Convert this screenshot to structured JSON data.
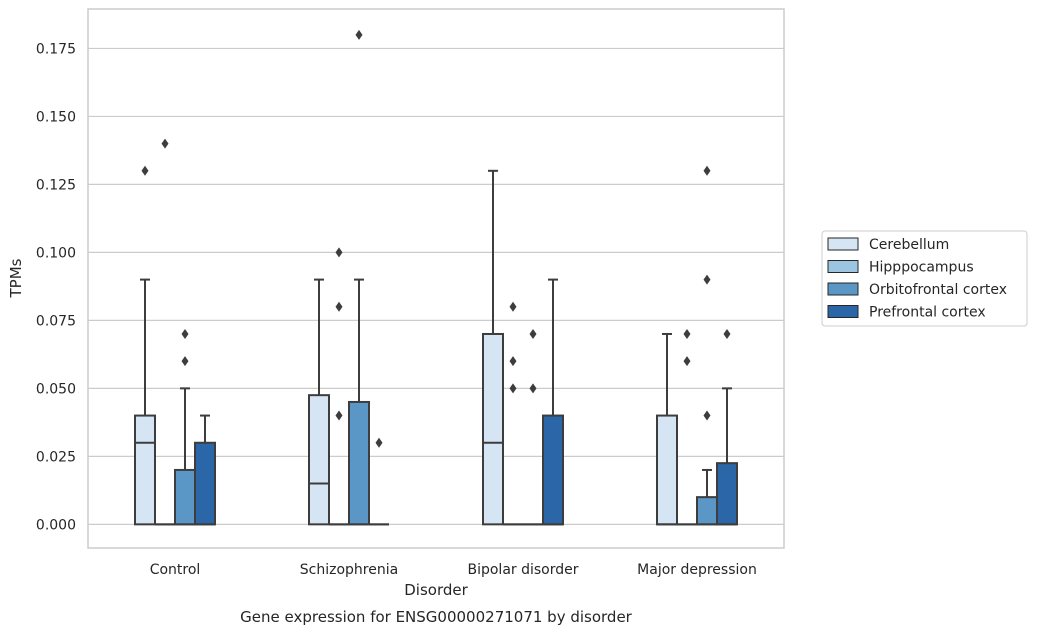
{
  "chart_data": {
    "type": "box",
    "xlabel": "Disorder",
    "ylabel": "TPMs",
    "caption": "Gene expression for ENSG00000271071 by disorder",
    "ylim": [
      -0.0087,
      0.1895
    ],
    "yticks": [
      "0.000",
      "0.025",
      "0.050",
      "0.075",
      "0.100",
      "0.125",
      "0.150",
      "0.175"
    ],
    "grid": "horizontal",
    "legend_position": "right",
    "categories": [
      "Control",
      "Schizophrenia",
      "Bipolar disorder",
      "Major depression"
    ],
    "series": [
      {
        "name": "Cerebellum",
        "color": "#d6e5f4",
        "boxes": [
          {
            "q1": 0,
            "median": 0.03,
            "q3": 0.04,
            "whisker_low": 0,
            "whisker_high": 0.09,
            "outliers": [
              0.13
            ]
          },
          {
            "q1": 0,
            "median": 0.015,
            "q3": 0.0475,
            "whisker_low": 0,
            "whisker_high": 0.09,
            "outliers": []
          },
          {
            "q1": 0,
            "median": 0.03,
            "q3": 0.07,
            "whisker_low": 0,
            "whisker_high": 0.13,
            "outliers": []
          },
          {
            "q1": 0,
            "median": 0,
            "q3": 0.04,
            "whisker_low": 0,
            "whisker_high": 0.07,
            "outliers": []
          }
        ]
      },
      {
        "name": "Hipppocampus",
        "color": "#9bc5e0",
        "boxes": [
          {
            "q1": 0,
            "median": 0,
            "q3": 0,
            "whisker_low": 0,
            "whisker_high": 0,
            "outliers": [
              0.14
            ]
          },
          {
            "q1": 0,
            "median": 0,
            "q3": 0,
            "whisker_low": 0,
            "whisker_high": 0,
            "outliers": [
              0.04,
              0.08,
              0.1
            ]
          },
          {
            "q1": 0,
            "median": 0,
            "q3": 0,
            "whisker_low": 0,
            "whisker_high": 0,
            "outliers": [
              0.05,
              0.06,
              0.08
            ]
          },
          {
            "q1": 0,
            "median": 0,
            "q3": 0,
            "whisker_low": 0,
            "whisker_high": 0,
            "outliers": [
              0.06,
              0.07
            ]
          }
        ]
      },
      {
        "name": "Orbitofrontal cortex",
        "color": "#5b97c6",
        "boxes": [
          {
            "q1": 0,
            "median": 0,
            "q3": 0.02,
            "whisker_low": 0,
            "whisker_high": 0.05,
            "outliers": [
              0.06,
              0.07
            ]
          },
          {
            "q1": 0,
            "median": 0,
            "q3": 0.045,
            "whisker_low": 0,
            "whisker_high": 0.09,
            "outliers": [
              0.18
            ]
          },
          {
            "q1": 0,
            "median": 0,
            "q3": 0,
            "whisker_low": 0,
            "whisker_high": 0,
            "outliers": [
              0.05,
              0.07
            ]
          },
          {
            "q1": 0,
            "median": 0,
            "q3": 0.01,
            "whisker_low": 0,
            "whisker_high": 0.02,
            "outliers": [
              0.04,
              0.09,
              0.13
            ]
          }
        ]
      },
      {
        "name": "Prefrontal cortex",
        "color": "#2a66a8",
        "boxes": [
          {
            "q1": 0,
            "median": 0,
            "q3": 0.03,
            "whisker_low": 0,
            "whisker_high": 0.04,
            "outliers": []
          },
          {
            "q1": 0,
            "median": 0,
            "q3": 0,
            "whisker_low": 0,
            "whisker_high": 0,
            "outliers": [
              0.03
            ]
          },
          {
            "q1": 0,
            "median": 0,
            "q3": 0.04,
            "whisker_low": 0,
            "whisker_high": 0.09,
            "outliers": []
          },
          {
            "q1": 0,
            "median": 0,
            "q3": 0.0225,
            "whisker_low": 0,
            "whisker_high": 0.05,
            "outliers": [
              0.07
            ]
          }
        ]
      }
    ]
  }
}
